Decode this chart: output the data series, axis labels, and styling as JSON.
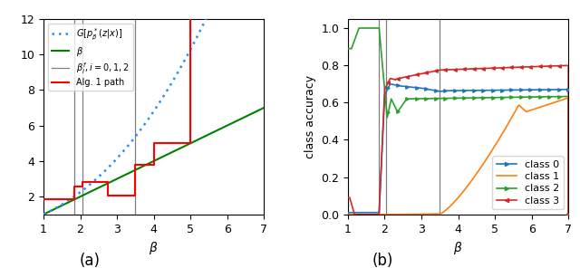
{
  "vlines_a": [
    1.85,
    2.05,
    3.5
  ],
  "vlines_b": [
    1.85,
    2.05,
    3.5
  ],
  "xlabel": "$\\beta$",
  "ylabel_b": "class accuracy",
  "label_a": "(a)",
  "label_b": "(b)",
  "legend_a": [
    "$G[p_\\beta^*(z|x)]$",
    "$\\beta$",
    "$\\beta_i^f, i=0, 1, 2$",
    "Alg. 1 path"
  ],
  "legend_b": [
    "class 0",
    "class 1",
    "class 2",
    "class 3"
  ],
  "colors_b": [
    "#1f77b4",
    "#ff7f0e",
    "#2ca02c",
    "#d62728"
  ],
  "red_x": [
    1,
    1.85,
    1.85,
    2.05,
    2.05,
    2.75,
    2.75,
    3.5,
    3.5,
    4.0,
    4.0,
    5.0,
    5.0
  ],
  "red_y": [
    1.85,
    1.85,
    2.55,
    2.55,
    2.8,
    2.8,
    2.05,
    2.05,
    3.8,
    3.8,
    5.0,
    5.0,
    12
  ]
}
